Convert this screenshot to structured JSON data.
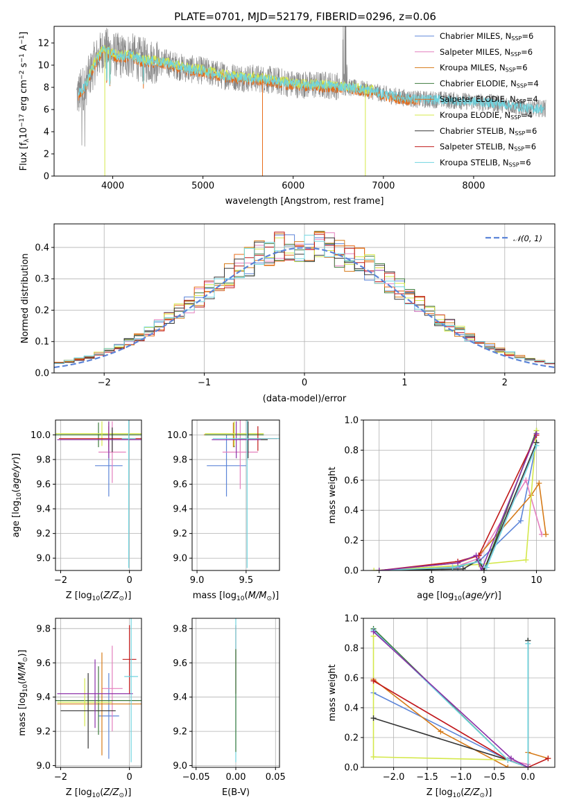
{
  "title": "PLATE=0701, MJD=52179, FIBERID=0296, z=0.06",
  "colors": {
    "Chabrier MILES": "#5b84d8",
    "Salpeter MILES": "#e47fbd",
    "Kroupa MILES": "#d67a17",
    "Chabrier ELODIE": "#3c7a3c",
    "Salpeter ELODIE": "#e86a16",
    "Kroupa ELODIE": "#d4e84a",
    "Chabrier STELIB": "#333333",
    "Salpeter STELIB": "#c01818",
    "Kroupa STELIB": "#6fd4df",
    "data": "#888888",
    "purple": "#8b2fa8",
    "grid": "#b0b0b0",
    "gauss": "#5b84d8"
  },
  "chart_data": [
    {
      "id": "spectrum",
      "type": "line",
      "xlabel": "wavelength [Angstrom, rest frame]",
      "ylabel": "Flux [f",
      "xlim": [
        3350,
        8900
      ],
      "ylim": [
        0,
        13.5
      ],
      "xticks": [
        4000,
        5000,
        6000,
        7000,
        8000
      ],
      "yticks": [
        0,
        2,
        4,
        6,
        8,
        10,
        12
      ],
      "legend_placement": "top-right",
      "legend": [
        {
          "label": "Chabrier MILES, N",
          "n": "6"
        },
        {
          "label": "Salpeter MILES, N",
          "n": "6"
        },
        {
          "label": "Kroupa MILES, N",
          "n": "6"
        },
        {
          "label": "Chabrier ELODIE, N",
          "n": "4"
        },
        {
          "label": "Salpeter ELODIE, N",
          "n": "4"
        },
        {
          "label": "Kroupa ELODIE, N",
          "n": "4"
        },
        {
          "label": "Chabrier STELIB, N",
          "n": "6"
        },
        {
          "label": "Salpeter STELIB, N",
          "n": "6"
        },
        {
          "label": "Kroupa STELIB, N",
          "n": "6"
        }
      ],
      "continuum": {
        "x": [
          3600,
          3700,
          3800,
          3900,
          4000,
          4100,
          4200,
          4300,
          4400,
          4600,
          4800,
          5000,
          5200,
          5400,
          5600,
          5800,
          6000,
          6200,
          6400,
          6600,
          6800,
          7000,
          7200,
          7400,
          7600,
          7800,
          8000,
          8200,
          8400,
          8600,
          8800
        ],
        "y": [
          7.2,
          8.2,
          10.2,
          11.5,
          11.0,
          10.8,
          10.9,
          10.5,
          10.4,
          10.2,
          9.7,
          9.5,
          9.1,
          8.9,
          8.8,
          8.6,
          8.3,
          8.2,
          8.2,
          8.0,
          7.8,
          7.4,
          7.1,
          6.9,
          6.9,
          6.8,
          6.7,
          6.6,
          6.4,
          6.1,
          6.1
        ]
      }
    },
    {
      "id": "residuals",
      "type": "histogram",
      "xlabel": "(data-model)/error",
      "ylabel": "Normed distribution",
      "xlim": [
        -2.5,
        2.5
      ],
      "ylim": [
        0,
        0.475
      ],
      "xticks": [
        -2,
        -1,
        0,
        1,
        2
      ],
      "yticks": [
        0.0,
        0.1,
        0.2,
        0.3,
        0.4
      ],
      "legend_placement": "top-right",
      "legend": [
        {
          "label": "𝒩(0, 1)"
        }
      ],
      "bin_width": 0.1,
      "gaussian": {
        "mean": 0,
        "sigma": 1
      }
    },
    {
      "id": "age-vs-Z",
      "type": "errorbar",
      "xlabel": "Z [log",
      "ylabel": "age  [log",
      "xlim": [
        -2.15,
        0.35
      ],
      "ylim": [
        8.9,
        10.12
      ],
      "xticks": [
        -2,
        0
      ],
      "yticks": [
        9.0,
        9.2,
        9.4,
        9.6,
        9.8,
        10.0
      ],
      "points": [
        {
          "model": "Chabrier MILES",
          "x": -0.6,
          "xerr": 0.4,
          "y": 9.75,
          "yerr": 0.25
        },
        {
          "model": "Salpeter MILES",
          "x": -0.5,
          "xerr": 0.4,
          "y": 9.86,
          "yerr": 0.25
        },
        {
          "model": "Kroupa MILES",
          "x": -0.6,
          "xerr": 1.4,
          "y": 10.0,
          "yerr": 0.1
        },
        {
          "model": "Chabrier ELODIE",
          "x": -0.9,
          "xerr": 1.3,
          "y": 10.0,
          "yerr": 0.1
        },
        {
          "model": "Kroupa ELODIE",
          "x": -0.8,
          "xerr": 1.35,
          "y": 10.01,
          "yerr": 0.1
        },
        {
          "model": "Salpeter STELIB",
          "x": -0.6,
          "xerr": 1.45,
          "y": 9.97,
          "yerr": 0.1
        },
        {
          "model": "Chabrier STELIB",
          "x": -0.5,
          "xerr": 1.5,
          "y": 9.96,
          "yerr": 0.1
        },
        {
          "model": "purple",
          "x": -0.6,
          "xerr": 1.5,
          "y": 9.96,
          "yerr": 0.15
        },
        {
          "model": "Kroupa STELIB",
          "x": -0.02,
          "xerr": 0.2,
          "y": 9.97,
          "yerr": 1.05
        }
      ]
    },
    {
      "id": "age-vs-mass",
      "type": "errorbar",
      "xlabel": "mass [log",
      "ylabel": "",
      "xlim": [
        8.95,
        9.84
      ],
      "ylim": [
        8.9,
        10.12
      ],
      "xticks": [
        9.0,
        9.5
      ],
      "yticks": [
        9.0,
        9.2,
        9.4,
        9.6,
        9.8,
        10.0
      ],
      "points": [
        {
          "model": "Chabrier MILES",
          "x": 9.3,
          "xerr": 0.2,
          "y": 9.75,
          "yerr": 0.25
        },
        {
          "model": "Salpeter MILES",
          "x": 9.44,
          "xerr": 0.18,
          "y": 9.86,
          "yerr": 0.3
        },
        {
          "model": "Kroupa MILES",
          "x": 9.37,
          "xerr": 0.3,
          "y": 10.0,
          "yerr": 0.1
        },
        {
          "model": "Chabrier ELODIE",
          "x": 9.38,
          "xerr": 0.3,
          "y": 10.0,
          "yerr": 0.1
        },
        {
          "model": "Kroupa ELODIE",
          "x": 9.38,
          "xerr": 0.3,
          "y": 10.01,
          "yerr": 0.1
        },
        {
          "model": "Salpeter STELIB",
          "x": 9.62,
          "xerr": 0.2,
          "y": 9.97,
          "yerr": 0.1
        },
        {
          "model": "Chabrier STELIB",
          "x": 9.52,
          "xerr": 0.2,
          "y": 9.96,
          "yerr": 0.15
        },
        {
          "model": "purple",
          "x": 9.4,
          "xerr": 0.25,
          "y": 9.96,
          "yerr": 0.15
        },
        {
          "model": "Kroupa STELIB",
          "x": 9.51,
          "xerr": 0.35,
          "y": 9.97,
          "yerr": 1.05
        }
      ]
    },
    {
      "id": "weight-vs-age",
      "type": "line",
      "xlabel": "age  [log",
      "ylabel": "mass weight",
      "xlim": [
        6.7,
        10.35
      ],
      "ylim": [
        0,
        1
      ],
      "xticks": [
        7,
        8,
        9,
        10
      ],
      "yticks": [
        0.0,
        0.2,
        0.4,
        0.6,
        0.8,
        1.0
      ],
      "series": [
        {
          "model": "Chabrier MILES",
          "x": [
            7.0,
            8.5,
            8.9,
            9.7,
            10.0
          ],
          "y": [
            0.0,
            0.02,
            0.06,
            0.33,
            0.85
          ]
        },
        {
          "model": "Salpeter MILES",
          "x": [
            7.0,
            8.5,
            8.9,
            9.8,
            10.1
          ],
          "y": [
            0.0,
            0.03,
            0.08,
            0.6,
            0.24
          ]
        },
        {
          "model": "Kroupa MILES",
          "x": [
            7.0,
            8.5,
            8.9,
            9.9,
            10.05,
            10.18
          ],
          "y": [
            0.0,
            0.05,
            0.1,
            0.5,
            0.58,
            0.24
          ]
        },
        {
          "model": "Chabrier ELODIE",
          "x": [
            7.0,
            8.4,
            8.9,
            9.0,
            10.0
          ],
          "y": [
            0.0,
            0.02,
            0.06,
            0.0,
            0.93
          ]
        },
        {
          "model": "Kroupa ELODIE",
          "x": [
            6.9,
            8.9,
            9.8,
            10.0
          ],
          "y": [
            0.0,
            0.04,
            0.07,
            0.93
          ]
        },
        {
          "model": "Chabrier STELIB",
          "x": [
            7.0,
            8.6,
            8.9,
            9.0,
            10.0
          ],
          "y": [
            0.0,
            0.01,
            0.07,
            0.0,
            0.85
          ]
        },
        {
          "model": "Salpeter STELIB",
          "x": [
            7.0,
            8.5,
            8.9,
            10.0
          ],
          "y": [
            0.0,
            0.06,
            0.1,
            0.9
          ]
        },
        {
          "model": "Kroupa STELIB",
          "x": [
            7.0,
            8.4,
            8.9,
            9.05,
            10.0
          ],
          "y": [
            0.0,
            0.02,
            0.06,
            0.02,
            0.83
          ]
        },
        {
          "model": "purple",
          "x": [
            7.0,
            8.5,
            8.85,
            8.95,
            10.0
          ],
          "y": [
            0.0,
            0.05,
            0.1,
            0.0,
            0.91
          ]
        }
      ]
    },
    {
      "id": "mass-vs-Z",
      "type": "errorbar",
      "xlabel": "Z [log",
      "ylabel": "mass [log",
      "xlim": [
        -2.15,
        0.35
      ],
      "ylim": [
        8.99,
        9.86
      ],
      "xticks": [
        -2,
        0
      ],
      "yticks": [
        9.0,
        9.2,
        9.4,
        9.6,
        9.8
      ],
      "points": [
        {
          "model": "Chabrier MILES",
          "x": -0.6,
          "xerr": 0.3,
          "y": 9.29,
          "yerr": 0.25
        },
        {
          "model": "Salpeter MILES",
          "x": -0.5,
          "xerr": 0.3,
          "y": 9.45,
          "yerr": 0.25
        },
        {
          "model": "Kroupa MILES",
          "x": -0.8,
          "xerr": 1.3,
          "y": 9.36,
          "yerr": 0.3
        },
        {
          "model": "Chabrier ELODIE",
          "x": -0.9,
          "xerr": 1.3,
          "y": 9.38,
          "yerr": 0.2
        },
        {
          "model": "Kroupa ELODIE",
          "x": -1.3,
          "xerr": 0.8,
          "y": 9.37,
          "yerr": 0.14
        },
        {
          "model": "Chabrier STELIB",
          "x": -1.2,
          "xerr": 0.8,
          "y": 9.32,
          "yerr": 0.22
        },
        {
          "model": "purple",
          "x": -1.0,
          "xerr": 1.1,
          "y": 9.42,
          "yerr": 0.2
        },
        {
          "model": "Salpeter STELIB",
          "x": 0.0,
          "xerr": 0.2,
          "y": 9.62,
          "yerr": 0.2
        },
        {
          "model": "Kroupa STELIB",
          "x": 0.05,
          "xerr": 0.2,
          "y": 9.52,
          "yerr": 0.5
        }
      ]
    },
    {
      "id": "mass-vs-EBV",
      "type": "errorbar",
      "xlabel": "E(B-V)",
      "ylabel": "",
      "xlim": [
        -0.055,
        0.055
      ],
      "ylim": [
        8.99,
        9.86
      ],
      "xticks": [
        -0.05,
        0.0,
        0.05
      ],
      "xticklabels": [
        "−0.05",
        "0.00",
        "0.05"
      ],
      "yticks": [
        9.0,
        9.2,
        9.4,
        9.6,
        9.8
      ],
      "points": [
        {
          "model": "Salpeter STELIB",
          "x": 0.0,
          "xerr": 0,
          "y": 9.62,
          "yerr": 0.2
        },
        {
          "model": "Kroupa STELIB",
          "x": 0.0,
          "xerr": 0,
          "y": 9.52,
          "yerr": 0.5
        },
        {
          "model": "Chabrier ELODIE",
          "x": 0.0,
          "xerr": 0,
          "y": 9.38,
          "yerr": 0.3
        }
      ]
    },
    {
      "id": "weight-vs-Z",
      "type": "line",
      "xlabel": "Z [log",
      "ylabel": "mass weight",
      "xlim": [
        -2.45,
        0.4
      ],
      "ylim": [
        0,
        1
      ],
      "xticks": [
        -2.0,
        -1.5,
        -1.0,
        -0.5,
        0.0
      ],
      "xticklabels": [
        "−2.0",
        "−1.5",
        "−1.0",
        "−0.5",
        "0.0"
      ],
      "yticks": [
        0.0,
        0.2,
        0.4,
        0.6,
        0.8,
        1.0
      ],
      "series": [
        {
          "model": "Chabrier MILES",
          "x": [
            -2.3,
            -0.3,
            0.0,
            0.0
          ],
          "y": [
            0.5,
            0.05,
            0.0,
            0.85
          ]
        },
        {
          "model": "Salpeter MILES",
          "x": [
            -2.3,
            -0.3,
            0.0
          ],
          "y": [
            0.58,
            0.05,
            0.02
          ]
        },
        {
          "model": "Kroupa MILES",
          "x": [
            -2.3,
            -1.3,
            -0.3,
            0.0,
            0.0,
            0.3
          ],
          "y": [
            0.59,
            0.24,
            0.0,
            0.0,
            0.1,
            0.06
          ]
        },
        {
          "model": "Chabrier ELODIE",
          "x": [
            -2.3,
            -0.3,
            0.0,
            0.0
          ],
          "y": [
            0.93,
            0.05,
            0.0,
            0.85
          ]
        },
        {
          "model": "Kroupa ELODIE",
          "x": [
            -2.3,
            -2.3,
            -0.3,
            0.0
          ],
          "y": [
            0.88,
            0.07,
            0.05,
            0.0
          ]
        },
        {
          "model": "Chabrier STELIB",
          "x": [
            -2.3,
            -0.3,
            0.0,
            0.0
          ],
          "y": [
            0.33,
            0.05,
            0.0,
            0.85
          ]
        },
        {
          "model": "Salpeter STELIB",
          "x": [
            -2.3,
            -0.3,
            0.0,
            0.3
          ],
          "y": [
            0.58,
            0.05,
            0.0,
            0.06
          ]
        },
        {
          "model": "Kroupa STELIB",
          "x": [
            -2.3,
            -0.3,
            0.0,
            0.0
          ],
          "y": [
            0.92,
            0.05,
            0.0,
            0.83
          ]
        },
        {
          "model": "purple",
          "x": [
            -2.3,
            -0.25,
            0.0
          ],
          "y": [
            0.91,
            0.06,
            0.0
          ]
        }
      ]
    }
  ]
}
